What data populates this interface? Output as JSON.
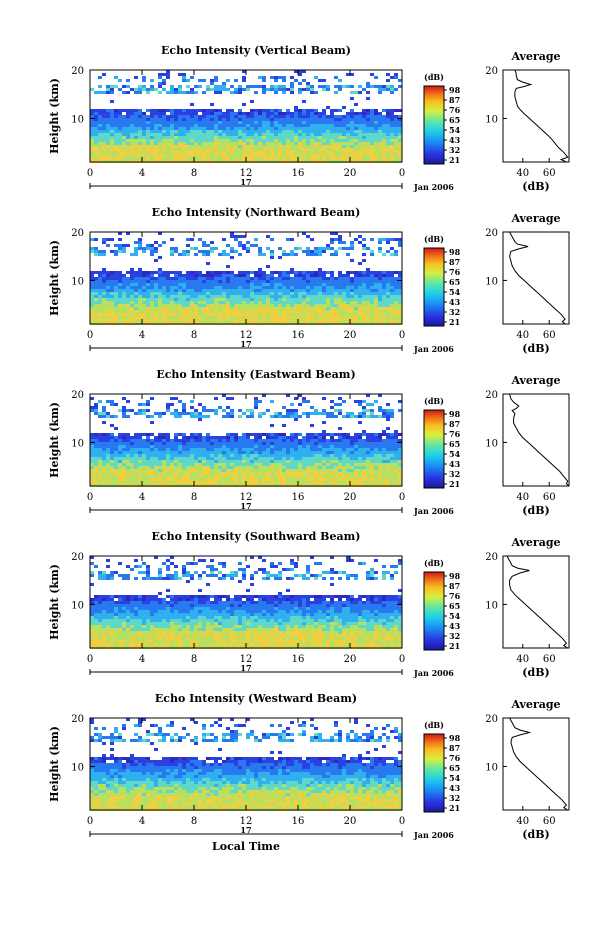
{
  "figure": {
    "date_label": "Jan 2006",
    "day_label": "17",
    "xlabel": "Local Time",
    "ylabel": "Height (km)",
    "colorbar_unit": "(dB)",
    "avg_title": "Average",
    "avg_xlabel": "(dB)"
  },
  "chart_data": [
    {
      "type": "heatmap",
      "title": "Echo Intensity (Vertical Beam)",
      "xlabel": "",
      "ylabel": "Height (km)",
      "x_ticks": [
        "0",
        "4",
        "8",
        "12",
        "16",
        "20",
        "0"
      ],
      "y_ticks": [
        "20",
        "10"
      ],
      "xlim": [
        0,
        24
      ],
      "ylim": [
        1,
        20
      ],
      "colorbar_label": "(dB)",
      "colorbar_ticks": [
        "98",
        "87",
        "76",
        "65",
        "54",
        "43",
        "32",
        "21"
      ],
      "profile": {
        "title": "Average",
        "xlabel": "(dB)",
        "x_ticks": [
          "40",
          "60"
        ],
        "y_ticks": [
          "20",
          "10"
        ],
        "xlim": [
          25,
          75
        ],
        "points": [
          [
            34,
            20
          ],
          [
            35,
            19.3
          ],
          [
            35,
            18.8
          ],
          [
            36,
            18
          ],
          [
            40,
            17.5
          ],
          [
            46,
            17
          ],
          [
            41,
            16.6
          ],
          [
            35,
            16.2
          ],
          [
            34,
            15.5
          ],
          [
            34,
            14.5
          ],
          [
            35,
            13.5
          ],
          [
            36,
            12.5
          ],
          [
            38,
            11.8
          ],
          [
            41,
            11
          ],
          [
            45,
            10
          ],
          [
            49,
            9
          ],
          [
            53,
            8
          ],
          [
            57,
            7
          ],
          [
            61,
            6
          ],
          [
            64,
            5
          ],
          [
            67,
            4
          ],
          [
            71,
            3
          ],
          [
            74,
            2
          ],
          [
            69,
            1.5
          ],
          [
            73,
            1
          ]
        ]
      }
    },
    {
      "type": "heatmap",
      "title": "Echo Intensity (Northward Beam)",
      "xlabel": "",
      "ylabel": "Height (km)",
      "x_ticks": [
        "0",
        "4",
        "8",
        "12",
        "16",
        "20",
        "0"
      ],
      "y_ticks": [
        "20",
        "10"
      ],
      "xlim": [
        0,
        24
      ],
      "ylim": [
        1,
        20
      ],
      "colorbar_label": "(dB)",
      "colorbar_ticks": [
        "98",
        "87",
        "76",
        "65",
        "54",
        "43",
        "32",
        "21"
      ],
      "profile": {
        "title": "Average",
        "xlabel": "(dB)",
        "x_ticks": [
          "40",
          "60"
        ],
        "y_ticks": [
          "20",
          "10"
        ],
        "xlim": [
          25,
          75
        ],
        "points": [
          [
            30,
            20
          ],
          [
            32,
            19
          ],
          [
            34,
            18
          ],
          [
            36,
            17.5
          ],
          [
            44,
            17
          ],
          [
            37,
            16.5
          ],
          [
            31,
            16
          ],
          [
            30,
            15
          ],
          [
            31,
            14
          ],
          [
            32,
            13
          ],
          [
            34,
            12
          ],
          [
            37,
            11
          ],
          [
            41,
            10
          ],
          [
            45,
            9
          ],
          [
            49,
            8
          ],
          [
            53,
            7
          ],
          [
            57,
            6
          ],
          [
            61,
            5
          ],
          [
            65,
            4
          ],
          [
            69,
            3
          ],
          [
            72,
            2
          ],
          [
            70,
            1.5
          ],
          [
            72,
            1
          ]
        ]
      }
    },
    {
      "type": "heatmap",
      "title": "Echo Intensity (Eastward Beam)",
      "xlabel": "",
      "ylabel": "Height (km)",
      "x_ticks": [
        "0",
        "4",
        "8",
        "12",
        "16",
        "20",
        "0"
      ],
      "y_ticks": [
        "20",
        "10"
      ],
      "xlim": [
        0,
        24
      ],
      "ylim": [
        1,
        20
      ],
      "colorbar_label": "(dB)",
      "colorbar_ticks": [
        "98",
        "87",
        "76",
        "65",
        "54",
        "43",
        "32",
        "21"
      ],
      "profile": {
        "title": "Average",
        "xlabel": "(dB)",
        "x_ticks": [
          "40",
          "60"
        ],
        "y_ticks": [
          "20",
          "10"
        ],
        "xlim": [
          25,
          75
        ],
        "points": [
          [
            30,
            20
          ],
          [
            31,
            19
          ],
          [
            33,
            18.3
          ],
          [
            37,
            17.5
          ],
          [
            35,
            17
          ],
          [
            32,
            16.6
          ],
          [
            34,
            16
          ],
          [
            33,
            15
          ],
          [
            33,
            14
          ],
          [
            35,
            13
          ],
          [
            37,
            12
          ],
          [
            40,
            11
          ],
          [
            44,
            10
          ],
          [
            48,
            9
          ],
          [
            52,
            8
          ],
          [
            56,
            7
          ],
          [
            60,
            6
          ],
          [
            64,
            5
          ],
          [
            68,
            4
          ],
          [
            71,
            3
          ],
          [
            74,
            2
          ],
          [
            73,
            1.5
          ],
          [
            75,
            1
          ]
        ]
      }
    },
    {
      "type": "heatmap",
      "title": "Echo Intensity (Southward Beam)",
      "xlabel": "",
      "ylabel": "Height (km)",
      "x_ticks": [
        "0",
        "4",
        "8",
        "12",
        "16",
        "20",
        "0"
      ],
      "y_ticks": [
        "20",
        "10"
      ],
      "xlim": [
        0,
        24
      ],
      "ylim": [
        1,
        20
      ],
      "colorbar_label": "(dB)",
      "colorbar_ticks": [
        "98",
        "87",
        "76",
        "65",
        "54",
        "43",
        "32",
        "21"
      ],
      "profile": {
        "title": "Average",
        "xlabel": "(dB)",
        "x_ticks": [
          "40",
          "60"
        ],
        "y_ticks": [
          "20",
          "10"
        ],
        "xlim": [
          25,
          75
        ],
        "points": [
          [
            28,
            20
          ],
          [
            30,
            19
          ],
          [
            32,
            18
          ],
          [
            36,
            17.5
          ],
          [
            45,
            17
          ],
          [
            38,
            16.5
          ],
          [
            32,
            15.8
          ],
          [
            30,
            15
          ],
          [
            30,
            14
          ],
          [
            31,
            13
          ],
          [
            34,
            12
          ],
          [
            38,
            11
          ],
          [
            42,
            10
          ],
          [
            46,
            9
          ],
          [
            50,
            8
          ],
          [
            54,
            7
          ],
          [
            58,
            6
          ],
          [
            62,
            5
          ],
          [
            66,
            4
          ],
          [
            70,
            3
          ],
          [
            73,
            2
          ],
          [
            71,
            1.5
          ],
          [
            74,
            1
          ]
        ]
      }
    },
    {
      "type": "heatmap",
      "title": "Echo Intensity (Westward Beam)",
      "xlabel": "Local Time",
      "ylabel": "Height (km)",
      "x_ticks": [
        "0",
        "4",
        "8",
        "12",
        "16",
        "20",
        "0"
      ],
      "y_ticks": [
        "20",
        "10"
      ],
      "xlim": [
        0,
        24
      ],
      "ylim": [
        1,
        20
      ],
      "colorbar_label": "(dB)",
      "colorbar_ticks": [
        "98",
        "87",
        "76",
        "65",
        "54",
        "43",
        "32",
        "21"
      ],
      "profile": {
        "title": "Average",
        "xlabel": "(dB)",
        "x_ticks": [
          "40",
          "60"
        ],
        "y_ticks": [
          "20",
          "10"
        ],
        "xlim": [
          25,
          75
        ],
        "points": [
          [
            30,
            20
          ],
          [
            32,
            19
          ],
          [
            34,
            18
          ],
          [
            38,
            17.5
          ],
          [
            45,
            17
          ],
          [
            38,
            16.5
          ],
          [
            32,
            16
          ],
          [
            31,
            15
          ],
          [
            32,
            14
          ],
          [
            33,
            13
          ],
          [
            35,
            12
          ],
          [
            38,
            11
          ],
          [
            42,
            10
          ],
          [
            46,
            9
          ],
          [
            50,
            8
          ],
          [
            54,
            7
          ],
          [
            58,
            6
          ],
          [
            62,
            5
          ],
          [
            66,
            4
          ],
          [
            70,
            3
          ],
          [
            73,
            2
          ],
          [
            71,
            1.5
          ],
          [
            74,
            1
          ]
        ]
      }
    }
  ]
}
